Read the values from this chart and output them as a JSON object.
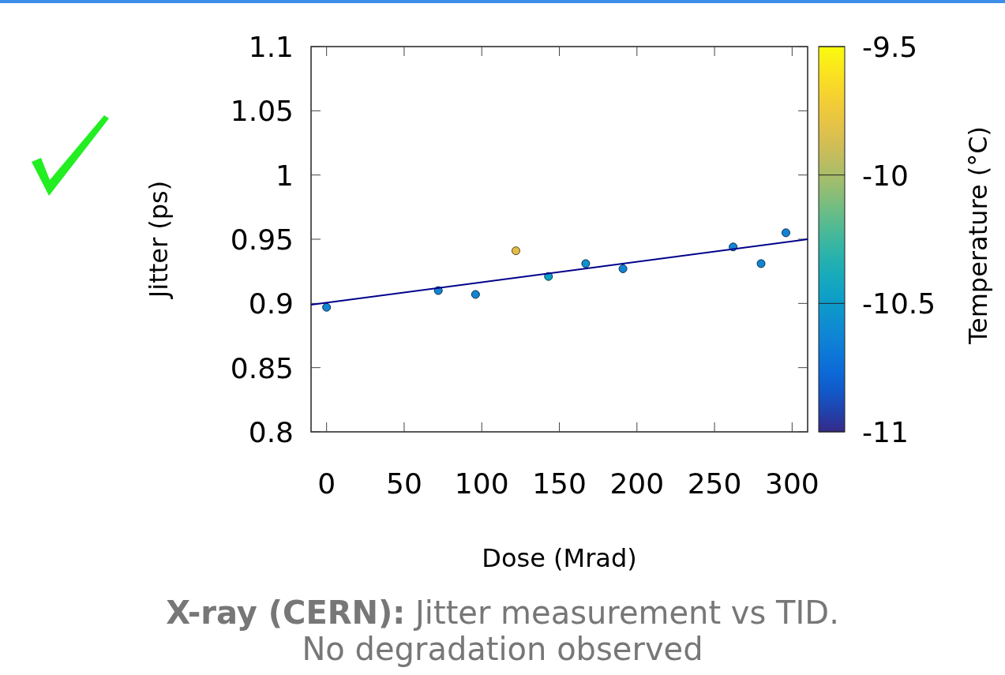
{
  "chart_data": {
    "type": "scatter",
    "xlabel": "Dose (Mrad)",
    "ylabel": "Jitter (ps)",
    "clabel": "Temperature (°C)",
    "annotations": [
      "X-ray (CERN): Jitter measurement vs TID.",
      "No degradation observed"
    ],
    "xlim": [
      -10,
      310
    ],
    "xticks": [
      0,
      50,
      100,
      150,
      200,
      250,
      300
    ],
    "ylim": [
      0.8,
      1.1
    ],
    "yticks": [
      0.8,
      0.85,
      0.9,
      0.95,
      1,
      1.05,
      1.1
    ],
    "clim": [
      -11,
      -9.5
    ],
    "cticks": [
      -11,
      -10.5,
      -10,
      -9.5
    ],
    "grid": false,
    "series": [
      {
        "marker": "circle",
        "colors": [
          "#1384d4",
          "#1384d4",
          "#1384d4",
          "#e3bd4a",
          "#0aa0c8",
          "#1190d0",
          "#1384d4",
          "#1384d4",
          "#1384d4",
          "#1384d4"
        ],
        "x": [
          0,
          72,
          96,
          122,
          143,
          167,
          191,
          262,
          280,
          296
        ],
        "values": [
          0.897,
          0.91,
          0.907,
          0.941,
          0.921,
          0.931,
          0.927,
          0.944,
          0.931,
          0.955
        ],
        "cvalues": [
          -10.6,
          -10.6,
          -10.6,
          -9.8,
          -10.45,
          -10.55,
          -10.6,
          -10.6,
          -10.6,
          -10.6
        ]
      },
      {
        "type": "line",
        "color": "#00008b",
        "x": [
          -10,
          310
        ],
        "values": [
          0.899,
          0.95
        ]
      }
    ]
  }
}
